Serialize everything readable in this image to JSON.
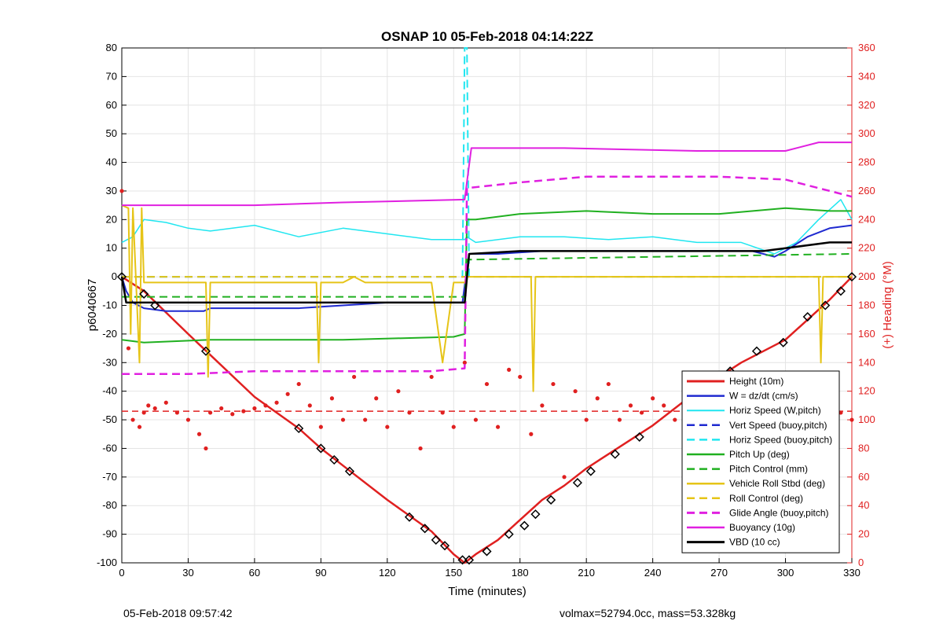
{
  "footer": {
    "timestamp": "05-Feb-2018 09:57:42",
    "summary": "volmax=52794.0cc, mass=53.328kg"
  },
  "colors": {
    "height": "#e02020",
    "w": "#1f2ad0",
    "horiz_speed": "#20e6f0",
    "pitch": "#20b020",
    "roll": "#e6c417",
    "glide": "#e020e0",
    "buoyancy": "#e020e0",
    "vbd": "#000000",
    "heading": "#e02020"
  },
  "chart_data": {
    "type": "line",
    "title": "OSNAP 10 05-Feb-2018 04:14:22Z",
    "xlabel": "Time (minutes)",
    "ylabel": "p6040667",
    "y2label": "(+) Heading (°M)",
    "xlim": [
      0,
      330
    ],
    "ylim": [
      -100,
      80
    ],
    "y2lim": [
      0,
      360
    ],
    "xticks": [
      0,
      30,
      60,
      90,
      120,
      150,
      180,
      210,
      240,
      270,
      300,
      330
    ],
    "yticks": [
      -100,
      -90,
      -80,
      -70,
      -60,
      -50,
      -40,
      -30,
      -20,
      -10,
      0,
      10,
      20,
      30,
      40,
      50,
      60,
      70,
      80
    ],
    "y2ticks": [
      0,
      20,
      40,
      60,
      80,
      100,
      120,
      140,
      160,
      180,
      200,
      220,
      240,
      260,
      280,
      300,
      320,
      340,
      360
    ],
    "grid": true,
    "legend_position": "bottom-right",
    "series": [
      {
        "name": "Height (10m)",
        "key": "height",
        "style": "solid",
        "width": 2.5,
        "x": [
          0,
          10,
          30,
          60,
          80,
          90,
          100,
          120,
          140,
          150,
          155,
          160,
          170,
          180,
          190,
          200,
          210,
          220,
          240,
          260,
          280,
          300,
          320,
          330
        ],
        "y": [
          0,
          -5,
          -20,
          -42,
          -53,
          -60,
          -66,
          -78,
          -89,
          -97,
          -100,
          -97,
          -92,
          -85,
          -78,
          -73,
          -67,
          -62,
          -52,
          -40,
          -30,
          -22,
          -8,
          0
        ]
      },
      {
        "name": "W = dz/dt (cm/s)",
        "key": "w",
        "style": "solid",
        "width": 2,
        "x": [
          0,
          2,
          5,
          10,
          20,
          30,
          37,
          40,
          60,
          80,
          100,
          120,
          140,
          154,
          155,
          157,
          170,
          190,
          210,
          240,
          270,
          285,
          295,
          300,
          310,
          320,
          330
        ],
        "y": [
          0,
          -5,
          -9,
          -11,
          -12,
          -12,
          -12,
          -11,
          -11,
          -11,
          -10,
          -9,
          -9,
          -9,
          -3,
          8,
          8,
          9,
          9,
          9,
          9,
          9,
          7,
          9,
          14,
          17,
          18
        ]
      },
      {
        "name": "Horiz Speed (W,pitch)",
        "key": "horiz_speed",
        "style": "solid",
        "width": 1.5,
        "x": [
          0,
          5,
          10,
          20,
          30,
          40,
          60,
          80,
          100,
          120,
          140,
          155,
          156,
          160,
          180,
          200,
          220,
          240,
          260,
          280,
          295,
          305,
          315,
          325,
          330
        ],
        "y": [
          12,
          14,
          20,
          19,
          17,
          16,
          18,
          14,
          17,
          15,
          13,
          13,
          14,
          12,
          14,
          14,
          13,
          14,
          12,
          12,
          8,
          12,
          20,
          27,
          20
        ]
      },
      {
        "name": "Vert Speed (buoy,pitch)",
        "key": "w",
        "style": "dashed",
        "width": 2,
        "x": [
          0,
          155
        ],
        "y": [
          0,
          0
        ]
      },
      {
        "name": "Horiz Speed (buoy,pitch)",
        "key": "horiz_speed",
        "style": "dashed",
        "width": 2,
        "x": [
          0,
          154,
          155,
          156,
          157,
          330
        ],
        "y": [
          0,
          0,
          80,
          80,
          0,
          0
        ]
      },
      {
        "name": "Pitch Up (deg)",
        "key": "pitch",
        "style": "solid",
        "width": 2,
        "x": [
          0,
          10,
          40,
          100,
          150,
          155,
          156,
          160,
          180,
          210,
          240,
          270,
          300,
          320,
          330
        ],
        "y": [
          -22,
          -23,
          -22,
          -22,
          -21,
          -20,
          20,
          20,
          22,
          23,
          22,
          22,
          24,
          23,
          23
        ]
      },
      {
        "name": "Pitch Control (mm)",
        "key": "pitch",
        "style": "dashed",
        "width": 2,
        "x": [
          0,
          155,
          156,
          330
        ],
        "y": [
          -7,
          -7,
          6,
          8
        ]
      },
      {
        "name": "Vehicle Roll Stbd (deg)",
        "key": "roll",
        "style": "solid",
        "width": 2,
        "x": [
          0,
          3,
          4,
          5,
          8,
          9,
          10,
          30,
          38,
          39,
          40,
          60,
          80,
          88,
          89,
          90,
          95,
          100,
          105,
          110,
          120,
          130,
          140,
          145,
          150,
          155,
          156,
          160,
          170,
          180,
          185,
          186,
          187,
          190,
          200,
          210,
          220,
          230,
          240,
          250,
          260,
          270,
          290,
          300,
          310,
          315,
          316,
          317,
          320,
          325,
          330
        ],
        "y": [
          25,
          24,
          -20,
          24,
          -30,
          24,
          -2,
          -2,
          -2,
          -35,
          -2,
          -2,
          -2,
          -2,
          -30,
          -2,
          -2,
          -2,
          0,
          -2,
          -2,
          -2,
          -2,
          -30,
          -2,
          -2,
          0,
          0,
          0,
          0,
          0,
          -40,
          0,
          0,
          0,
          0,
          0,
          0,
          0,
          0,
          0,
          0,
          0,
          0,
          0,
          0,
          -30,
          0,
          0,
          0,
          0
        ]
      },
      {
        "name": "Roll Control (deg)",
        "key": "roll",
        "style": "dashed",
        "width": 2,
        "x": [
          0,
          330
        ],
        "y": [
          0,
          0
        ]
      },
      {
        "name": "Glide Angle (buoy,pitch)",
        "key": "glide",
        "style": "dashed",
        "width": 2.5,
        "x": [
          0,
          30,
          60,
          100,
          140,
          155,
          156,
          180,
          210,
          240,
          270,
          300,
          310,
          320,
          330
        ],
        "y": [
          -34,
          -34,
          -33,
          -33,
          -33,
          -32,
          31,
          33,
          35,
          35,
          35,
          34,
          32,
          30,
          28
        ]
      },
      {
        "name": "Buoyancy (10g)",
        "key": "buoyancy",
        "style": "solid",
        "width": 2,
        "x": [
          0,
          60,
          100,
          155,
          158,
          200,
          260,
          300,
          315,
          330
        ],
        "y": [
          25,
          25,
          26,
          27,
          45,
          45,
          44,
          44,
          47,
          47
        ]
      },
      {
        "name": "VBD (10 cc)",
        "key": "vbd",
        "style": "solid",
        "width": 2.5,
        "x": [
          0,
          2,
          10,
          60,
          100,
          130,
          155,
          157,
          180,
          240,
          270,
          290,
          300,
          320,
          330
        ],
        "y": [
          0,
          -9,
          -9,
          -9,
          -9,
          -9,
          -9,
          8,
          9,
          9,
          9,
          9,
          10,
          12,
          12
        ]
      }
    ],
    "heading": {
      "name": "(+) Heading (°M)",
      "style": "dotted-scatter",
      "target": 106,
      "x": [
        0,
        3,
        5,
        8,
        10,
        12,
        15,
        20,
        25,
        30,
        35,
        38,
        40,
        45,
        50,
        55,
        60,
        65,
        70,
        75,
        80,
        85,
        90,
        95,
        100,
        105,
        110,
        115,
        120,
        125,
        130,
        135,
        140,
        145,
        150,
        155,
        160,
        165,
        170,
        175,
        180,
        185,
        190,
        195,
        200,
        205,
        210,
        215,
        220,
        225,
        230,
        235,
        240,
        245,
        250,
        255,
        260,
        265,
        270,
        275,
        280,
        285,
        290,
        295,
        300,
        305,
        310,
        315,
        320,
        325,
        330
      ],
      "y": [
        260,
        150,
        100,
        95,
        105,
        110,
        108,
        112,
        105,
        100,
        90,
        80,
        105,
        108,
        104,
        106,
        108,
        110,
        112,
        118,
        125,
        110,
        95,
        115,
        100,
        130,
        100,
        115,
        95,
        120,
        105,
        80,
        130,
        105,
        95,
        140,
        100,
        125,
        95,
        135,
        130,
        90,
        110,
        125,
        60,
        120,
        100,
        115,
        125,
        100,
        110,
        105,
        115,
        110,
        100,
        105,
        110,
        95,
        115,
        110,
        105,
        100,
        110,
        90,
        105,
        100,
        110,
        95,
        100,
        105,
        100
      ]
    },
    "markers": {
      "name": "Height (10m) markers",
      "x": [
        0,
        10,
        15,
        38,
        80,
        90,
        96,
        103,
        130,
        137,
        142,
        146,
        154,
        157,
        165,
        175,
        182,
        187,
        194,
        206,
        212,
        223,
        234,
        259,
        270,
        275,
        287,
        299,
        310,
        318,
        325,
        330
      ],
      "y": [
        0,
        -6,
        -10,
        -26,
        -53,
        -60,
        -64,
        -68,
        -84,
        -88,
        -92,
        -94,
        -99,
        -99,
        -96,
        -90,
        -87,
        -83,
        -78,
        -72,
        -68,
        -62,
        -56,
        -40,
        -36,
        -33,
        -26,
        -23,
        -14,
        -10,
        -5,
        0
      ]
    }
  }
}
